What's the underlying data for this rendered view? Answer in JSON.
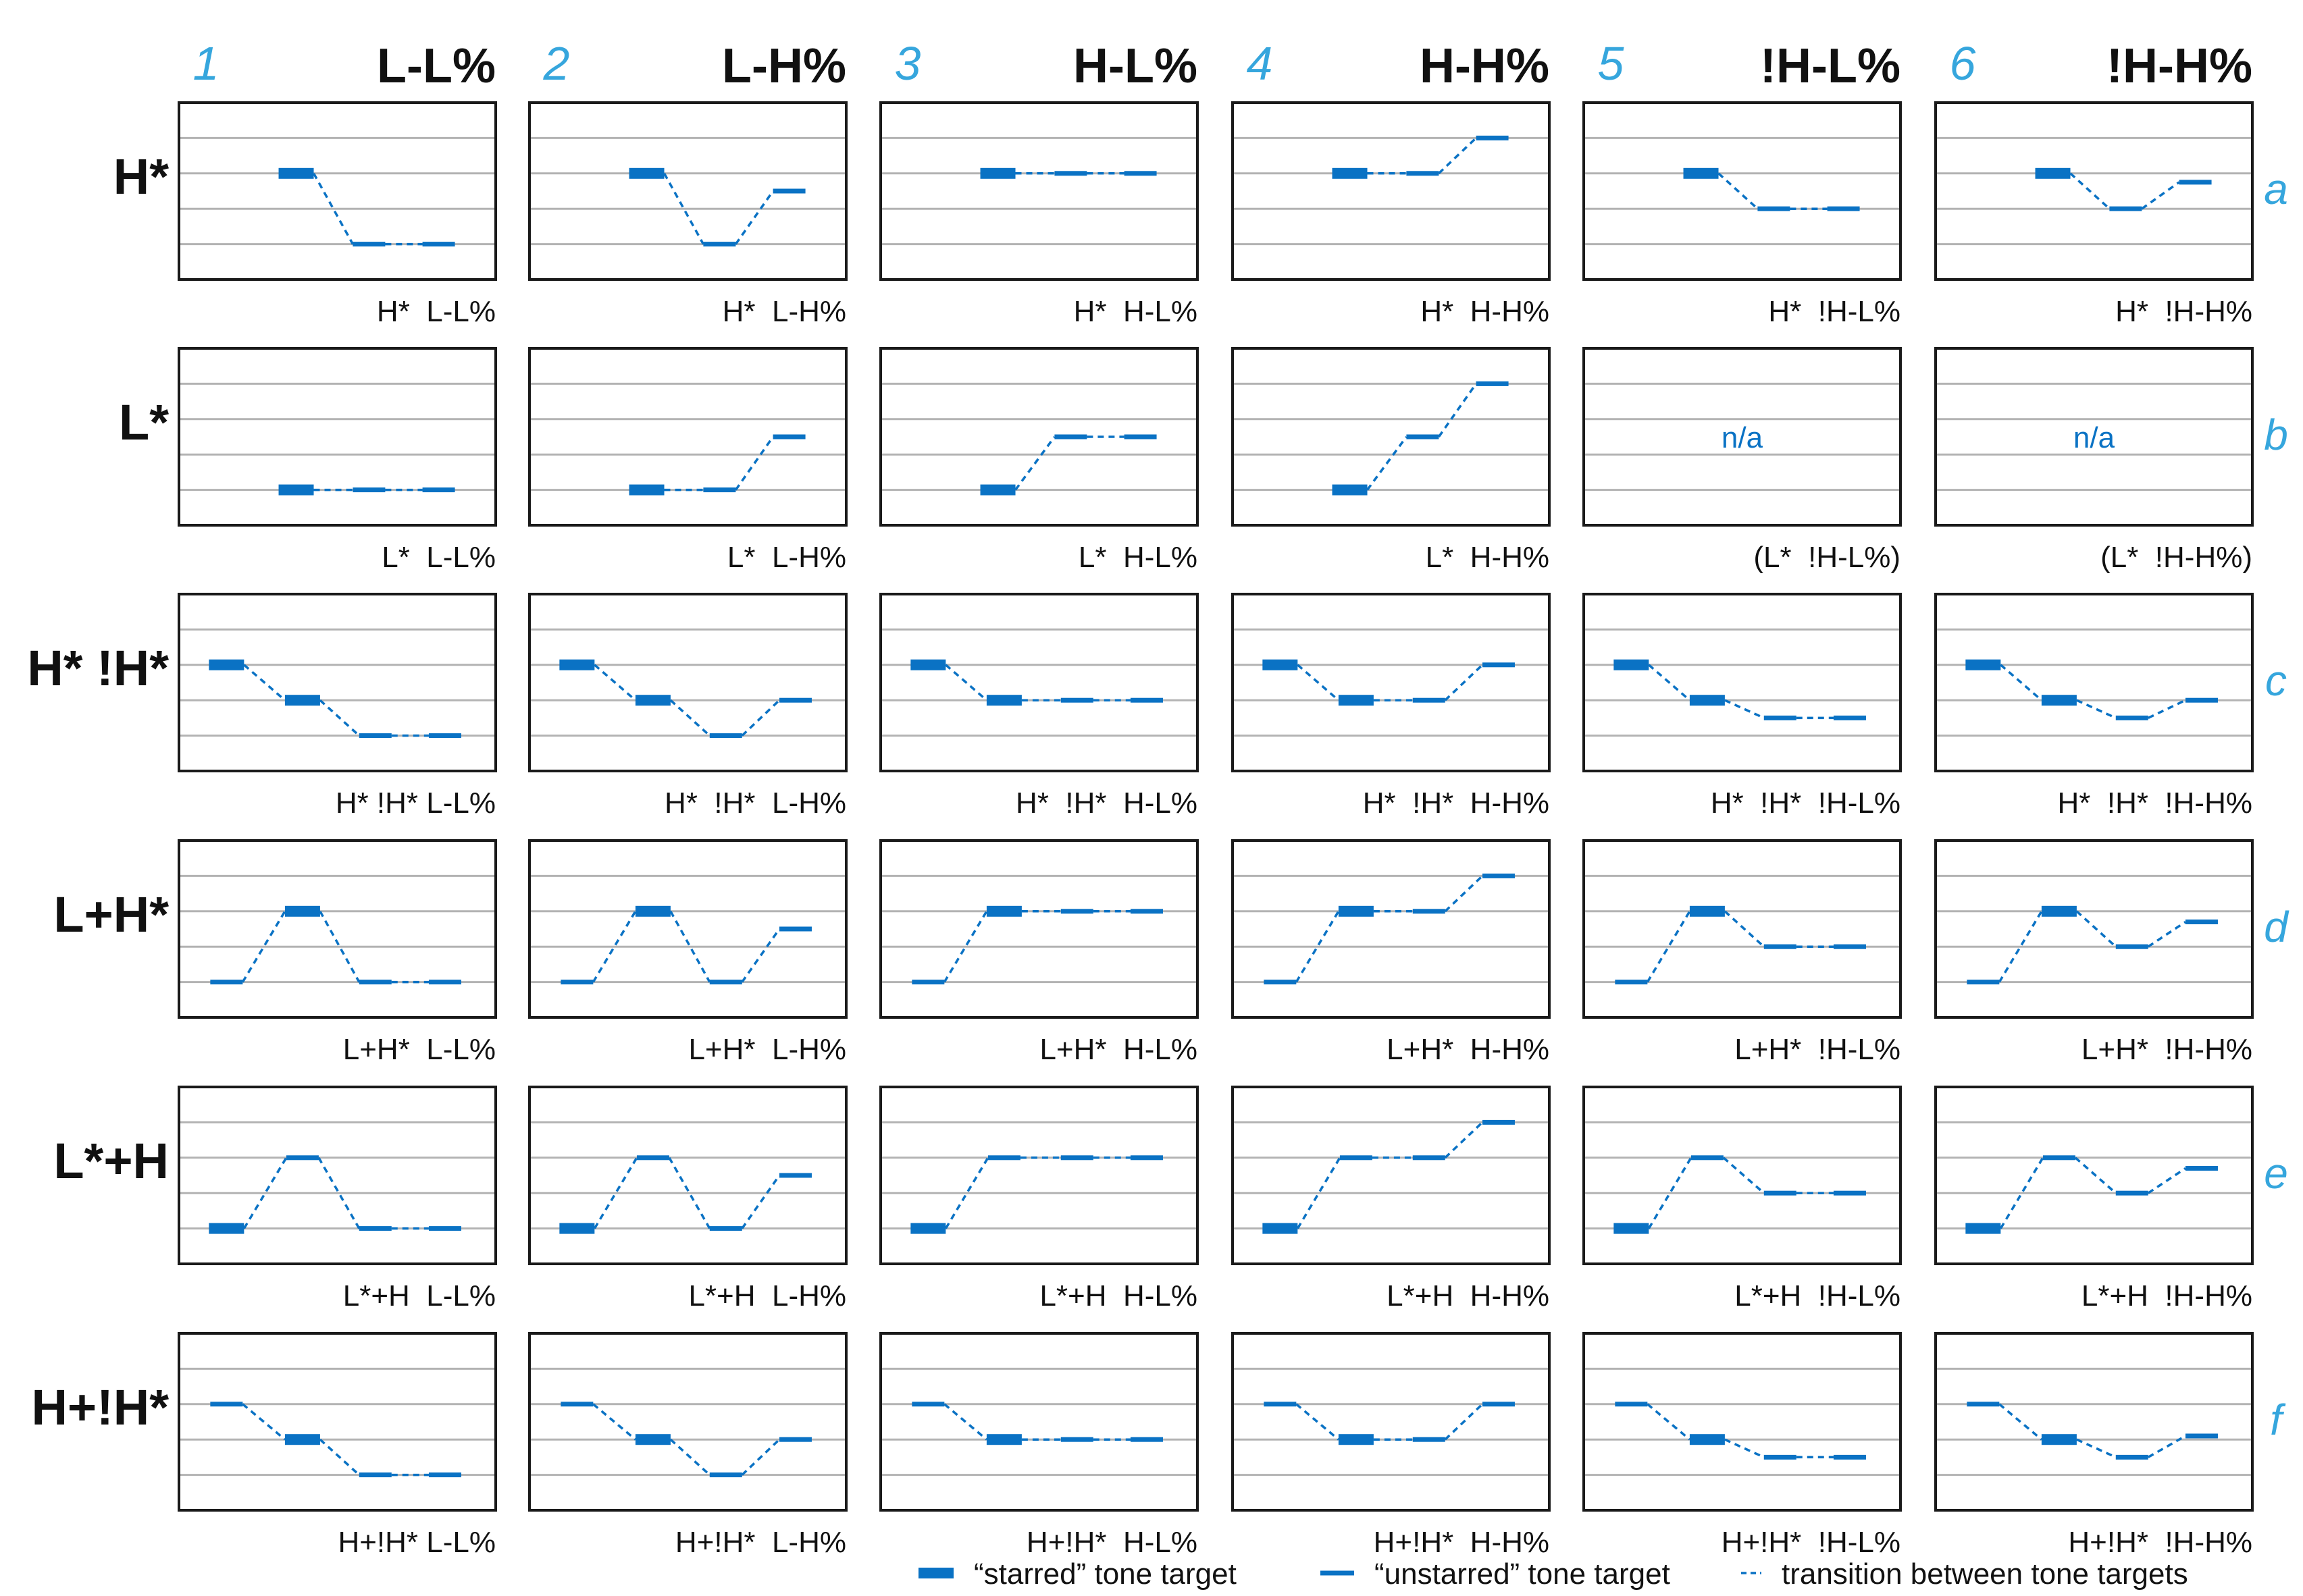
{
  "colors": {
    "blue": "#0a72c4",
    "label_blue": "#36a6dd",
    "grid": "#b3b3b3",
    "frame": "#1a1a1a",
    "text": "#111111"
  },
  "columns": [
    {
      "number": "1",
      "title": "L-L%"
    },
    {
      "number": "2",
      "title": "L-H%"
    },
    {
      "number": "3",
      "title": "H-L%"
    },
    {
      "number": "4",
      "title": "H-H%"
    },
    {
      "number": "5",
      "title": "!H-L%"
    },
    {
      "number": "6",
      "title": "!H-H%"
    }
  ],
  "rows": [
    {
      "label": "H*",
      "letter": "a"
    },
    {
      "label": "L*",
      "letter": "b"
    },
    {
      "label": "H* !H*",
      "letter": "c"
    },
    {
      "label": "L+H*",
      "letter": "d"
    },
    {
      "label": "L*+H",
      "letter": "e"
    },
    {
      "label": "H+!H*",
      "letter": "f"
    }
  ],
  "cells": [
    [
      {
        "caption": "H*  L-L%",
        "targets": [
          {
            "t": 0.37,
            "level": 3.0,
            "starred": true
          },
          {
            "t": 0.6,
            "level": 1.0,
            "starred": false
          },
          {
            "t": 0.82,
            "level": 1.0,
            "starred": false
          }
        ]
      },
      {
        "caption": "H*  L-H%",
        "targets": [
          {
            "t": 0.37,
            "level": 3.0,
            "starred": true
          },
          {
            "t": 0.6,
            "level": 1.0,
            "starred": false
          },
          {
            "t": 0.82,
            "level": 2.5,
            "starred": false
          }
        ]
      },
      {
        "caption": "H*  H-L%",
        "targets": [
          {
            "t": 0.37,
            "level": 3.0,
            "starred": true
          },
          {
            "t": 0.6,
            "level": 3.0,
            "starred": false
          },
          {
            "t": 0.82,
            "level": 3.0,
            "starred": false
          }
        ]
      },
      {
        "caption": "H*  H-H%",
        "targets": [
          {
            "t": 0.37,
            "level": 3.0,
            "starred": true
          },
          {
            "t": 0.6,
            "level": 3.0,
            "starred": false
          },
          {
            "t": 0.82,
            "level": 4.0,
            "starred": false
          }
        ]
      },
      {
        "caption": "H*  !H-L%",
        "targets": [
          {
            "t": 0.37,
            "level": 3.0,
            "starred": true
          },
          {
            "t": 0.6,
            "level": 2.0,
            "starred": false
          },
          {
            "t": 0.82,
            "level": 2.0,
            "starred": false
          }
        ]
      },
      {
        "caption": "H*  !H-H%",
        "targets": [
          {
            "t": 0.37,
            "level": 3.0,
            "starred": true
          },
          {
            "t": 0.6,
            "level": 2.0,
            "starred": false
          },
          {
            "t": 0.82,
            "level": 2.75,
            "starred": false
          }
        ]
      }
    ],
    [
      {
        "caption": "L*  L-L%",
        "targets": [
          {
            "t": 0.37,
            "level": 1.0,
            "starred": true
          },
          {
            "t": 0.6,
            "level": 1.0,
            "starred": false
          },
          {
            "t": 0.82,
            "level": 1.0,
            "starred": false
          }
        ]
      },
      {
        "caption": "L*  L-H%",
        "targets": [
          {
            "t": 0.37,
            "level": 1.0,
            "starred": true
          },
          {
            "t": 0.6,
            "level": 1.0,
            "starred": false
          },
          {
            "t": 0.82,
            "level": 2.5,
            "starred": false
          }
        ]
      },
      {
        "caption": "L*  H-L%",
        "targets": [
          {
            "t": 0.37,
            "level": 1.0,
            "starred": true
          },
          {
            "t": 0.6,
            "level": 2.5,
            "starred": false
          },
          {
            "t": 0.82,
            "level": 2.5,
            "starred": false
          }
        ]
      },
      {
        "caption": "L*  H-H%",
        "targets": [
          {
            "t": 0.37,
            "level": 1.0,
            "starred": true
          },
          {
            "t": 0.6,
            "level": 2.5,
            "starred": false
          },
          {
            "t": 0.82,
            "level": 4.0,
            "starred": false
          }
        ]
      },
      {
        "caption": "(L*  !H-L%)",
        "na": "n/a",
        "targets": []
      },
      {
        "caption": "(L*  !H-H%)",
        "na": "n/a",
        "targets": []
      }
    ],
    [
      {
        "caption": "H* !H* L-L%",
        "targets": [
          {
            "t": 0.15,
            "level": 3.0,
            "starred": true
          },
          {
            "t": 0.39,
            "level": 2.0,
            "starred": true
          },
          {
            "t": 0.62,
            "level": 1.0,
            "starred": false
          },
          {
            "t": 0.84,
            "level": 1.0,
            "starred": false
          }
        ]
      },
      {
        "caption": "H*  !H*  L-H%",
        "targets": [
          {
            "t": 0.15,
            "level": 3.0,
            "starred": true
          },
          {
            "t": 0.39,
            "level": 2.0,
            "starred": true
          },
          {
            "t": 0.62,
            "level": 1.0,
            "starred": false
          },
          {
            "t": 0.84,
            "level": 2.0,
            "starred": false
          }
        ]
      },
      {
        "caption": "H*  !H*  H-L%",
        "targets": [
          {
            "t": 0.15,
            "level": 3.0,
            "starred": true
          },
          {
            "t": 0.39,
            "level": 2.0,
            "starred": true
          },
          {
            "t": 0.62,
            "level": 2.0,
            "starred": false
          },
          {
            "t": 0.84,
            "level": 2.0,
            "starred": false
          }
        ]
      },
      {
        "caption": "H*  !H*  H-H%",
        "targets": [
          {
            "t": 0.15,
            "level": 3.0,
            "starred": true
          },
          {
            "t": 0.39,
            "level": 2.0,
            "starred": true
          },
          {
            "t": 0.62,
            "level": 2.0,
            "starred": false
          },
          {
            "t": 0.84,
            "level": 3.0,
            "starred": false
          }
        ]
      },
      {
        "caption": "H*  !H*  !H-L%",
        "targets": [
          {
            "t": 0.15,
            "level": 3.0,
            "starred": true
          },
          {
            "t": 0.39,
            "level": 2.0,
            "starred": true
          },
          {
            "t": 0.62,
            "level": 1.5,
            "starred": false
          },
          {
            "t": 0.84,
            "level": 1.5,
            "starred": false
          }
        ]
      },
      {
        "caption": "H*  !H*  !H-H%",
        "targets": [
          {
            "t": 0.15,
            "level": 3.0,
            "starred": true
          },
          {
            "t": 0.39,
            "level": 2.0,
            "starred": true
          },
          {
            "t": 0.62,
            "level": 1.5,
            "starred": false
          },
          {
            "t": 0.84,
            "level": 2.0,
            "starred": false
          }
        ]
      }
    ],
    [
      {
        "caption": "L+H*  L-L%",
        "targets": [
          {
            "t": 0.15,
            "level": 1.0,
            "starred": false
          },
          {
            "t": 0.39,
            "level": 3.0,
            "starred": true
          },
          {
            "t": 0.62,
            "level": 1.0,
            "starred": false
          },
          {
            "t": 0.84,
            "level": 1.0,
            "starred": false
          }
        ]
      },
      {
        "caption": "L+H*  L-H%",
        "targets": [
          {
            "t": 0.15,
            "level": 1.0,
            "starred": false
          },
          {
            "t": 0.39,
            "level": 3.0,
            "starred": true
          },
          {
            "t": 0.62,
            "level": 1.0,
            "starred": false
          },
          {
            "t": 0.84,
            "level": 2.5,
            "starred": false
          }
        ]
      },
      {
        "caption": "L+H*  H-L%",
        "targets": [
          {
            "t": 0.15,
            "level": 1.0,
            "starred": false
          },
          {
            "t": 0.39,
            "level": 3.0,
            "starred": true
          },
          {
            "t": 0.62,
            "level": 3.0,
            "starred": false
          },
          {
            "t": 0.84,
            "level": 3.0,
            "starred": false
          }
        ]
      },
      {
        "caption": "L+H*  H-H%",
        "targets": [
          {
            "t": 0.15,
            "level": 1.0,
            "starred": false
          },
          {
            "t": 0.39,
            "level": 3.0,
            "starred": true
          },
          {
            "t": 0.62,
            "level": 3.0,
            "starred": false
          },
          {
            "t": 0.84,
            "level": 4.0,
            "starred": false
          }
        ]
      },
      {
        "caption": "L+H*  !H-L%",
        "targets": [
          {
            "t": 0.15,
            "level": 1.0,
            "starred": false
          },
          {
            "t": 0.39,
            "level": 3.0,
            "starred": true
          },
          {
            "t": 0.62,
            "level": 2.0,
            "starred": false
          },
          {
            "t": 0.84,
            "level": 2.0,
            "starred": false
          }
        ]
      },
      {
        "caption": "L+H*  !H-H%",
        "targets": [
          {
            "t": 0.15,
            "level": 1.0,
            "starred": false
          },
          {
            "t": 0.39,
            "level": 3.0,
            "starred": true
          },
          {
            "t": 0.62,
            "level": 2.0,
            "starred": false
          },
          {
            "t": 0.84,
            "level": 2.7,
            "starred": false
          }
        ]
      }
    ],
    [
      {
        "caption": "L*+H  L-L%",
        "targets": [
          {
            "t": 0.15,
            "level": 1.0,
            "starred": true
          },
          {
            "t": 0.39,
            "level": 3.0,
            "starred": false
          },
          {
            "t": 0.62,
            "level": 1.0,
            "starred": false
          },
          {
            "t": 0.84,
            "level": 1.0,
            "starred": false
          }
        ]
      },
      {
        "caption": "L*+H  L-H%",
        "targets": [
          {
            "t": 0.15,
            "level": 1.0,
            "starred": true
          },
          {
            "t": 0.39,
            "level": 3.0,
            "starred": false
          },
          {
            "t": 0.62,
            "level": 1.0,
            "starred": false
          },
          {
            "t": 0.84,
            "level": 2.5,
            "starred": false
          }
        ]
      },
      {
        "caption": "L*+H  H-L%",
        "targets": [
          {
            "t": 0.15,
            "level": 1.0,
            "starred": true
          },
          {
            "t": 0.39,
            "level": 3.0,
            "starred": false
          },
          {
            "t": 0.62,
            "level": 3.0,
            "starred": false
          },
          {
            "t": 0.84,
            "level": 3.0,
            "starred": false
          }
        ]
      },
      {
        "caption": "L*+H  H-H%",
        "targets": [
          {
            "t": 0.15,
            "level": 1.0,
            "starred": true
          },
          {
            "t": 0.39,
            "level": 3.0,
            "starred": false
          },
          {
            "t": 0.62,
            "level": 3.0,
            "starred": false
          },
          {
            "t": 0.84,
            "level": 4.0,
            "starred": false
          }
        ]
      },
      {
        "caption": "L*+H  !H-L%",
        "targets": [
          {
            "t": 0.15,
            "level": 1.0,
            "starred": true
          },
          {
            "t": 0.39,
            "level": 3.0,
            "starred": false
          },
          {
            "t": 0.62,
            "level": 2.0,
            "starred": false
          },
          {
            "t": 0.84,
            "level": 2.0,
            "starred": false
          }
        ]
      },
      {
        "caption": "L*+H  !H-H%",
        "targets": [
          {
            "t": 0.15,
            "level": 1.0,
            "starred": true
          },
          {
            "t": 0.39,
            "level": 3.0,
            "starred": false
          },
          {
            "t": 0.62,
            "level": 2.0,
            "starred": false
          },
          {
            "t": 0.84,
            "level": 2.7,
            "starred": false
          }
        ]
      }
    ],
    [
      {
        "caption": "H+!H* L-L%",
        "targets": [
          {
            "t": 0.15,
            "level": 3.0,
            "starred": false
          },
          {
            "t": 0.39,
            "level": 2.0,
            "starred": true
          },
          {
            "t": 0.62,
            "level": 1.0,
            "starred": false
          },
          {
            "t": 0.84,
            "level": 1.0,
            "starred": false
          }
        ]
      },
      {
        "caption": "H+!H*  L-H%",
        "targets": [
          {
            "t": 0.15,
            "level": 3.0,
            "starred": false
          },
          {
            "t": 0.39,
            "level": 2.0,
            "starred": true
          },
          {
            "t": 0.62,
            "level": 1.0,
            "starred": false
          },
          {
            "t": 0.84,
            "level": 2.0,
            "starred": false
          }
        ]
      },
      {
        "caption": "H+!H*  H-L%",
        "targets": [
          {
            "t": 0.15,
            "level": 3.0,
            "starred": false
          },
          {
            "t": 0.39,
            "level": 2.0,
            "starred": true
          },
          {
            "t": 0.62,
            "level": 2.0,
            "starred": false
          },
          {
            "t": 0.84,
            "level": 2.0,
            "starred": false
          }
        ]
      },
      {
        "caption": "H+!H*  H-H%",
        "targets": [
          {
            "t": 0.15,
            "level": 3.0,
            "starred": false
          },
          {
            "t": 0.39,
            "level": 2.0,
            "starred": true
          },
          {
            "t": 0.62,
            "level": 2.0,
            "starred": false
          },
          {
            "t": 0.84,
            "level": 3.0,
            "starred": false
          }
        ]
      },
      {
        "caption": "H+!H*  !H-L%",
        "targets": [
          {
            "t": 0.15,
            "level": 3.0,
            "starred": false
          },
          {
            "t": 0.39,
            "level": 2.0,
            "starred": true
          },
          {
            "t": 0.62,
            "level": 1.5,
            "starred": false
          },
          {
            "t": 0.84,
            "level": 1.5,
            "starred": false
          }
        ]
      },
      {
        "caption": "H+!H*  !H-H%",
        "targets": [
          {
            "t": 0.15,
            "level": 3.0,
            "starred": false
          },
          {
            "t": 0.39,
            "level": 2.0,
            "starred": true
          },
          {
            "t": 0.62,
            "level": 1.5,
            "starred": false
          },
          {
            "t": 0.84,
            "level": 2.1,
            "starred": false
          }
        ]
      }
    ]
  ],
  "legend": [
    {
      "kind": "starred",
      "label": "“starred” tone target"
    },
    {
      "kind": "unstarred",
      "label": "“unstarred” tone target"
    },
    {
      "kind": "transition",
      "label": "transition between tone targets"
    }
  ]
}
